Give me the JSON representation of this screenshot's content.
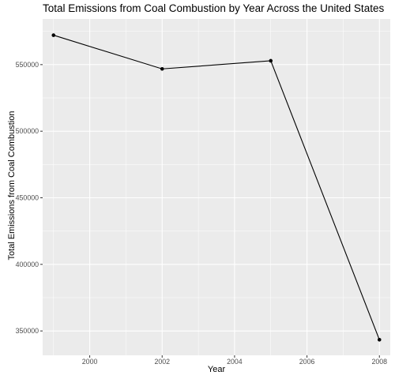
{
  "chart_data": {
    "type": "line",
    "title": "Total Emissions from Coal Combustion by Year Across the United States",
    "xlabel": "Year",
    "ylabel": "Total Emissions from Coal Combustion",
    "x": [
      1999,
      2002,
      2005,
      2008
    ],
    "values": [
      572100,
      546800,
      552900,
      343400
    ],
    "xlim": [
      1998.7,
      2008.3
    ],
    "ylim": [
      331700,
      584300
    ],
    "x_ticks": [
      2000,
      2002,
      2004,
      2006,
      2008
    ],
    "x_tick_labels": [
      "2000",
      "2002",
      "2004",
      "2006",
      "2008"
    ],
    "y_ticks": [
      350000,
      400000,
      450000,
      500000,
      550000
    ],
    "y_tick_labels": [
      "350000",
      "400000",
      "450000",
      "500000",
      "550000"
    ],
    "grid": true,
    "colors": {
      "panel": "#ebebeb",
      "grid": "#ffffff",
      "line": "#000000",
      "tick_text": "#4d4d4d"
    }
  }
}
